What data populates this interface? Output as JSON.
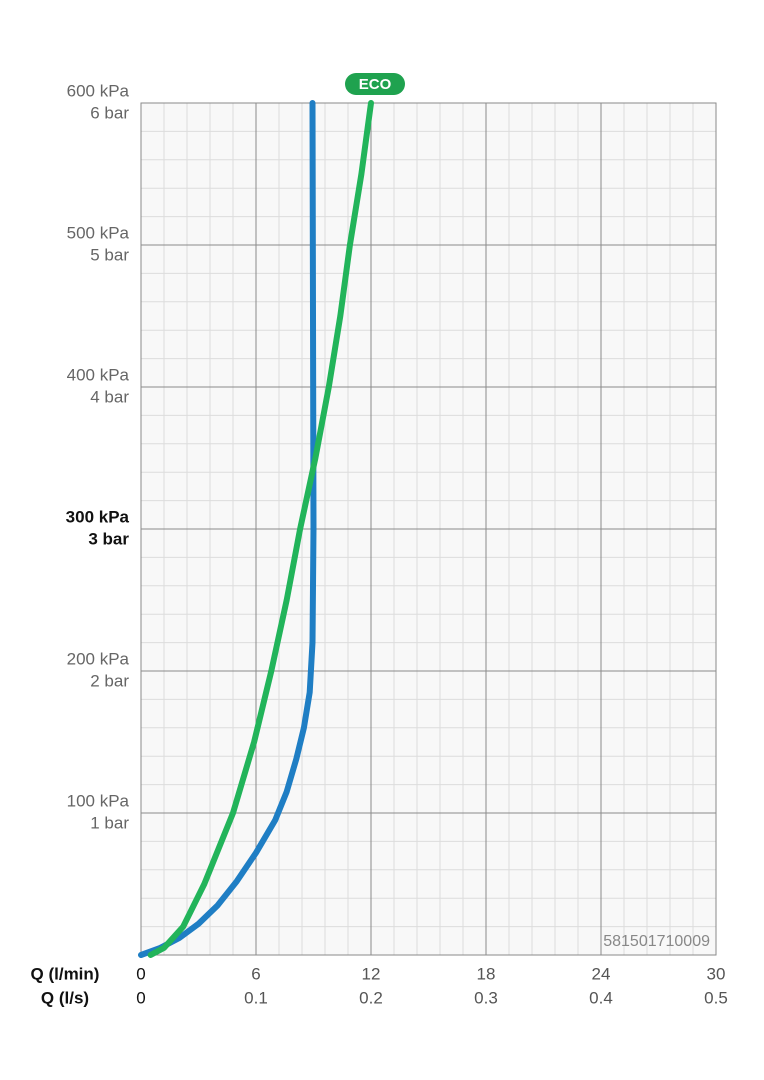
{
  "chart_data": {
    "type": "line",
    "xlabel": "Q (l/min)",
    "x2label": "Q (l/s)",
    "xlim": [
      0,
      30
    ],
    "xticks": [
      0,
      6,
      12,
      18,
      24,
      30
    ],
    "x2lim": [
      0,
      0.5
    ],
    "x2ticks": [
      0,
      0.1,
      0.2,
      0.3,
      0.4,
      0.5
    ],
    "ylim": [
      0,
      600
    ],
    "yticks": [
      {
        "value": 100,
        "label": "100 kPa"
      },
      {
        "value": 200,
        "label": "200 kPa"
      },
      {
        "value": 300,
        "label": "300 kPa"
      },
      {
        "value": 400,
        "label": "400 kPa"
      },
      {
        "value": 500,
        "label": "500 kPa"
      },
      {
        "value": 600,
        "label": "600 kPa"
      }
    ],
    "yticks_bar": [
      {
        "value": 100,
        "label": "1 bar"
      },
      {
        "value": 200,
        "label": "2 bar"
      },
      {
        "value": 300,
        "label": "3 bar"
      },
      {
        "value": 400,
        "label": "4 bar"
      },
      {
        "value": 500,
        "label": "5 bar"
      },
      {
        "value": 600,
        "label": "6 bar"
      }
    ],
    "bold_ytick": 300,
    "grid": true,
    "annotations": [
      "ECO",
      "581501710009"
    ],
    "series": [
      {
        "color": "#1f7ec4",
        "x": [
          0,
          1,
          2,
          3,
          4,
          5,
          6,
          7,
          7.6,
          8.1,
          8.5,
          8.8,
          8.95,
          9,
          8.95
        ],
        "values": [
          0,
          5,
          12,
          22,
          35,
          52,
          72,
          95,
          115,
          138,
          160,
          185,
          220,
          300,
          600
        ]
      },
      {
        "color": "#22b45a",
        "x": [
          0.5,
          1.2,
          2.2,
          3.3,
          4.8,
          5.9,
          6.8,
          7.6,
          8.3,
          9.1,
          9.8,
          10.4,
          10.9,
          11.5,
          12
        ],
        "values": [
          0,
          5,
          20,
          50,
          100,
          150,
          200,
          250,
          300,
          350,
          400,
          450,
          500,
          550,
          600
        ]
      }
    ]
  }
}
